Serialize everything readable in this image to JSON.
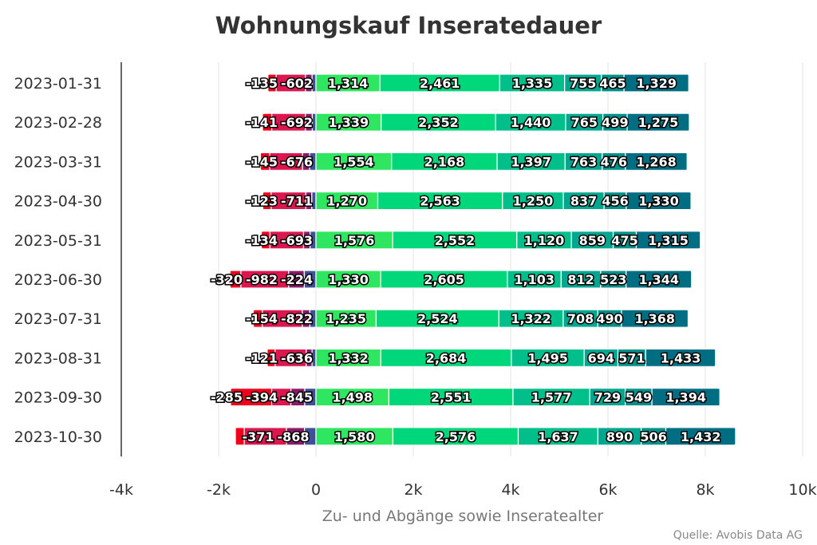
{
  "chart_data": {
    "type": "bar",
    "orientation": "horizontal",
    "stacked": true,
    "title": "Wohnungskauf Inseratedauer",
    "xlabel": "Zu- und Abgänge sowie Inseratealter",
    "source": "Quelle: Avobis Data AG",
    "xlim": [
      -4000,
      10000
    ],
    "xticks": [
      -4000,
      -2000,
      0,
      2000,
      4000,
      6000,
      8000,
      10000
    ],
    "xtick_labels": [
      "-4k",
      "-2k",
      "0",
      "2k",
      "4k",
      "6k",
      "8k",
      "10k"
    ],
    "grid": true,
    "categories": [
      "2023-01-31",
      "2023-02-28",
      "2023-03-31",
      "2023-04-30",
      "2023-05-31",
      "2023-06-30",
      "2023-07-31",
      "2023-08-31",
      "2023-09-30",
      "2023-10-30"
    ],
    "negative_series": [
      {
        "values": [
          -80,
          -75,
          -130,
          -85,
          -120,
          -240,
          -125,
          -80,
          -230,
          -235
        ],
        "color": "#3f4f9a"
      },
      {
        "values": [
          -135,
          -141,
          -145,
          -123,
          -134,
          -320,
          -154,
          -121,
          -285,
          -371
        ],
        "color": "#8a1a6a"
      },
      {
        "values": [
          -602,
          -692,
          -676,
          -711,
          -693,
          -982,
          -822,
          -636,
          -394,
          -868
        ],
        "color": "#dc1750"
      },
      {
        "values": [
          -170,
          -190,
          -190,
          -175,
          -175,
          -224,
          -185,
          -165,
          -845,
          -180
        ],
        "color": "#f0001c"
      }
    ],
    "positive_series": [
      {
        "values": [
          1314,
          1339,
          1554,
          1270,
          1576,
          1330,
          1235,
          1332,
          1498,
          1580
        ],
        "color": "#2ee660"
      },
      {
        "values": [
          2461,
          2352,
          2168,
          2563,
          2552,
          2605,
          2524,
          2684,
          2551,
          2576
        ],
        "color": "#00d67a"
      },
      {
        "values": [
          1335,
          1440,
          1397,
          1250,
          1120,
          1103,
          1322,
          1495,
          1577,
          1637
        ],
        "color": "#00bf8a"
      },
      {
        "values": [
          755,
          765,
          763,
          837,
          859,
          812,
          708,
          694,
          729,
          890
        ],
        "color": "#00a790"
      },
      {
        "values": [
          465,
          499,
          476,
          456,
          475,
          523,
          490,
          571,
          549,
          506
        ],
        "color": "#00908a"
      },
      {
        "values": [
          1329,
          1275,
          1268,
          1330,
          1315,
          1344,
          1368,
          1433,
          1394,
          1432
        ],
        "color": "#006e82"
      }
    ],
    "label_rows": [
      [
        "-135",
        "-602",
        "1,314",
        "2,461",
        "1,335",
        "755",
        "465",
        "1,329"
      ],
      [
        "-141",
        "-692",
        "1,339",
        "2,352",
        "1,440",
        "765",
        "499",
        "1,275"
      ],
      [
        "-145",
        "-676",
        "1,554",
        "2,168",
        "1,397",
        "763",
        "476",
        "1,268"
      ],
      [
        "-123",
        "-711",
        "1,270",
        "2,563",
        "1,250",
        "837",
        "456",
        "1,330"
      ],
      [
        "-134",
        "-693",
        "1,576",
        "2,552",
        "1,120",
        "859",
        "475",
        "1,315"
      ],
      [
        "-320",
        "-982",
        "-224",
        "1,330",
        "2,605",
        "1,103",
        "812",
        "523",
        "1,344"
      ],
      [
        "-154",
        "-822",
        "1,235",
        "2,524",
        "1,322",
        "708",
        "490",
        "1,368"
      ],
      [
        "-121",
        "-636",
        "1,332",
        "2,684",
        "1,495",
        "694",
        "571",
        "1,433"
      ],
      [
        "-285",
        "-394",
        "-845",
        "1,498",
        "2,551",
        "1,577",
        "729",
        "549",
        "1,394"
      ],
      [
        "-371",
        "-868",
        "1,580",
        "2,576",
        "1,637",
        "890",
        "506",
        "1,432"
      ]
    ]
  }
}
